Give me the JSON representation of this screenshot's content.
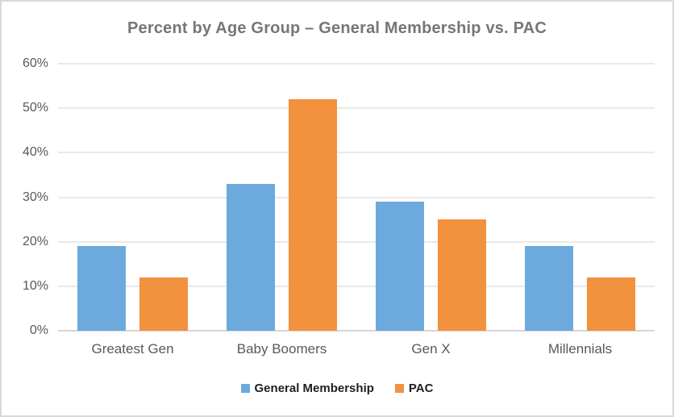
{
  "frame": {
    "background": "#ffffff",
    "border_color": "#d9d9d9"
  },
  "chart_data": {
    "type": "bar",
    "title": "Percent by Age Group – General Membership vs. PAC",
    "title_color": "#767676",
    "categories": [
      "Greatest Gen",
      "Baby Boomers",
      "Gen X",
      "Millennials"
    ],
    "series": [
      {
        "name": "General Membership",
        "color": "#6caadd",
        "values": [
          19,
          33,
          29,
          19
        ]
      },
      {
        "name": "PAC",
        "color": "#f2913e",
        "values": [
          12,
          52,
          25,
          12
        ]
      }
    ],
    "xlabel": "",
    "ylabel": "",
    "ylim": [
      0,
      60
    ],
    "ytick_step": 10,
    "ytick_labels": [
      "0%",
      "10%",
      "20%",
      "30%",
      "40%",
      "50%",
      "60%"
    ],
    "axis_text_color": "#595959",
    "gridline_color": "#e9e9e9",
    "baseline_color": "#d6d6d6",
    "grid": true,
    "legend_position": "bottom",
    "legend_text_color": "#1f1f1f"
  }
}
